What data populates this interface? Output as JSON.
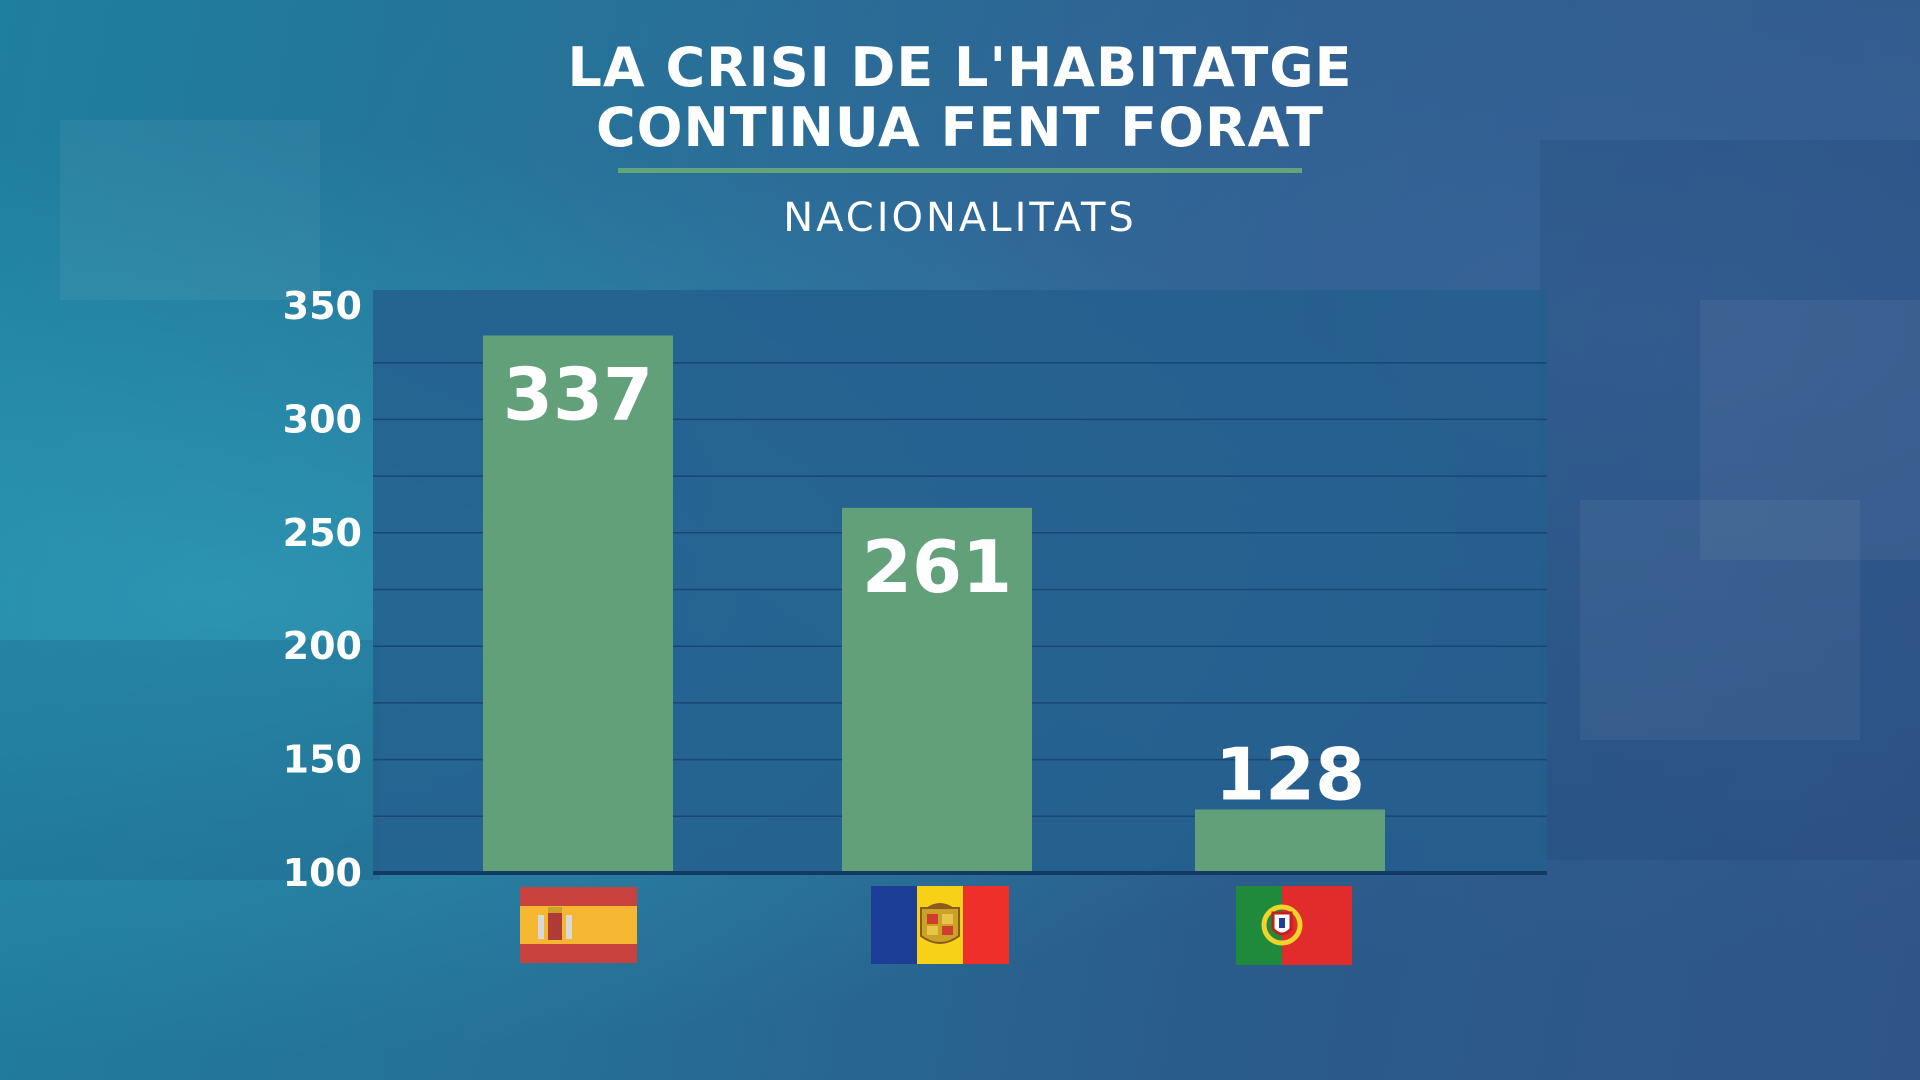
{
  "title_lines": [
    "LA CRISI DE L'HABITATGE",
    "CONTINUA FENT FORAT"
  ],
  "subtitle": "NACIONALITATS",
  "colors": {
    "bar": "#62a07a",
    "plot_bg": "#245f8e",
    "grid": "#1b4674",
    "baseline": "#123a63",
    "title_rule": "#62a57a"
  },
  "chart_data": {
    "type": "bar",
    "title": "LA CRISI DE L'HABITATGE CONTINUA FENT FORAT",
    "subtitle": "NACIONALITATS",
    "categories": [
      "spain-flag",
      "andorra-flag",
      "portugal-flag"
    ],
    "values": [
      337,
      261,
      128
    ],
    "data_labels": [
      "337",
      "261",
      "128"
    ],
    "ylim": [
      100,
      350
    ],
    "yticks": [
      350,
      300,
      250,
      200,
      150,
      100
    ],
    "grid": true,
    "gridline_values": [
      325,
      300,
      275,
      250,
      225,
      200,
      175,
      150,
      125
    ],
    "xlabel": "",
    "ylabel": ""
  }
}
